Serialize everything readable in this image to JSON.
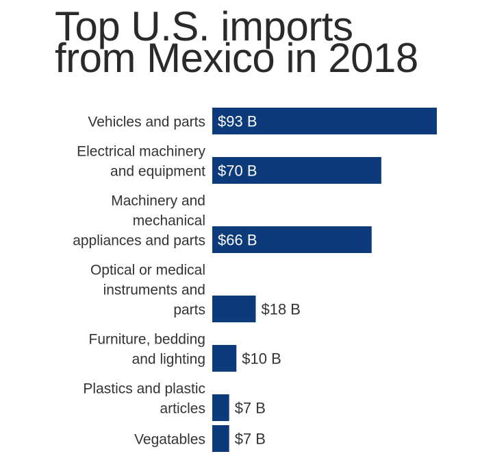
{
  "title_lines": [
    "Top U.S. imports",
    "from Mexico in 2018"
  ],
  "bar_color": "#0d3a7a",
  "chart_data": {
    "type": "bar",
    "orientation": "horizontal",
    "title": "Top U.S. imports from Mexico in 2018",
    "categories": [
      "Vehicles and parts",
      "Electrical machinery and equipment",
      "Machinery and mechanical appliances and parts",
      "Optical or medical instruments and parts",
      "Furniture, bedding and lighting",
      "Plastics and plastic articles",
      "Vegatables"
    ],
    "category_lines": [
      [
        "Vehicles and parts"
      ],
      [
        "Electrical machinery",
        "and equipment"
      ],
      [
        "Machinery and",
        "mechanical",
        "appliances and parts"
      ],
      [
        "Optical or medical",
        "instruments and",
        "parts"
      ],
      [
        "Furniture, bedding",
        "and lighting"
      ],
      [
        "Plastics and plastic",
        "articles"
      ],
      [
        "Vegatables"
      ]
    ],
    "values": [
      93,
      70,
      66,
      18,
      10,
      7,
      7
    ],
    "value_labels": [
      "$93 B",
      "$70 B",
      "$66 B",
      "$18 B",
      "$10 B",
      "$7 B",
      "$7 B"
    ],
    "unit": "billion USD",
    "xlim": [
      0,
      93
    ],
    "grid": false,
    "legend": "none"
  }
}
